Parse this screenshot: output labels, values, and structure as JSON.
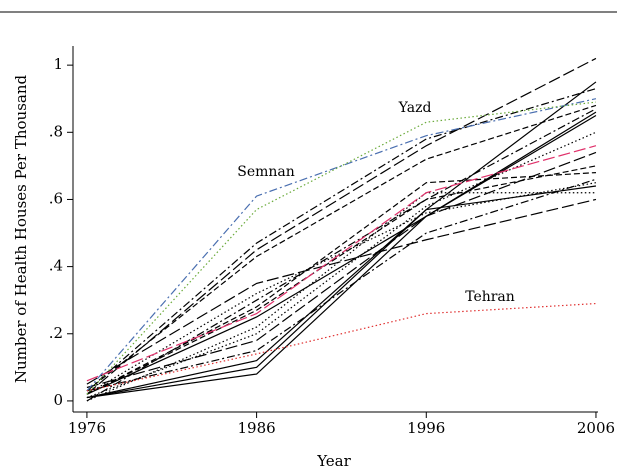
{
  "chart_data": {
    "type": "line",
    "x_label": "Year",
    "y_label": "Number of Health Houses Per Thousand",
    "x": [
      1976,
      1986,
      1996,
      2006
    ],
    "xlim": [
      1975.18,
      2006.12
    ],
    "ylim": [
      -0.033,
      1.057
    ],
    "xticks": [
      1976,
      1986,
      1996,
      2006
    ],
    "yticks": [
      0,
      {
        "value": 0.2,
        "label": ".2"
      },
      {
        "value": 0.4,
        "label": ".4"
      },
      {
        "value": 0.6,
        "label": ".6"
      },
      {
        "value": 0.8,
        "label": ".8"
      },
      1
    ],
    "series": [
      {
        "color": "#000000",
        "dash": "solid",
        "values": [
          0.01,
          0.1,
          0.57,
          0.95
        ]
      },
      {
        "color": "#000000",
        "dash": "longdash",
        "values": [
          0.02,
          0.45,
          0.76,
          1.02
        ]
      },
      {
        "color": "#000000",
        "dash": "dash",
        "values": [
          0.03,
          0.43,
          0.72,
          0.88
        ]
      },
      {
        "color": "#000000",
        "dash": "dashdot",
        "values": [
          0.0,
          0.3,
          0.6,
          0.87
        ]
      },
      {
        "color": "#000000",
        "dash": "solid",
        "values": [
          0.02,
          0.25,
          0.55,
          0.86
        ]
      },
      {
        "color": "#000000",
        "dash": "dot",
        "values": [
          0.01,
          0.2,
          0.58,
          0.8
        ]
      },
      {
        "color": "#000000",
        "dash": "longdash",
        "values": [
          0.04,
          0.18,
          0.55,
          0.74
        ]
      },
      {
        "color": "#000000",
        "dash": "dash",
        "values": [
          0.02,
          0.27,
          0.6,
          0.7
        ]
      },
      {
        "color": "#000000",
        "dash": "dashdot",
        "values": [
          0.03,
          0.15,
          0.5,
          0.66
        ]
      },
      {
        "color": "#000000",
        "dash": "solid",
        "values": [
          0.01,
          0.12,
          0.57,
          0.64
        ]
      },
      {
        "color": "#000000",
        "dash": "dot",
        "values": [
          0.0,
          0.22,
          0.62,
          0.62
        ]
      },
      {
        "color": "#000000",
        "dash": "longdash",
        "values": [
          0.05,
          0.35,
          0.48,
          0.6
        ]
      },
      {
        "color": "#000000",
        "dash": "dash",
        "values": [
          0.02,
          0.28,
          0.65,
          0.68
        ]
      },
      {
        "color": "#000000",
        "dash": "dashdot",
        "values": [
          0.03,
          0.47,
          0.78,
          0.93
        ]
      },
      {
        "color": "#000000",
        "dash": "solid",
        "values": [
          0.01,
          0.08,
          0.55,
          0.85
        ]
      },
      {
        "color": "#000000",
        "dash": "dot",
        "values": [
          0.02,
          0.32,
          0.56,
          0.65
        ]
      },
      {
        "color": "#4a6fb0",
        "dash": "dashdot",
        "values": [
          0.03,
          0.61,
          0.79,
          0.9
        ]
      },
      {
        "color": "#6aaa3a",
        "dash": "dot",
        "values": [
          0.02,
          0.57,
          0.83,
          0.89
        ]
      },
      {
        "color": "#e0306a",
        "dash": "longdash",
        "values": [
          0.06,
          0.26,
          0.62,
          0.76
        ]
      },
      {
        "color": "#e03030",
        "dash": "dot",
        "values": [
          0.03,
          0.14,
          0.26,
          0.29
        ]
      }
    ],
    "annotations": [
      "Semnan",
      "Yazd",
      "Tehran"
    ]
  }
}
